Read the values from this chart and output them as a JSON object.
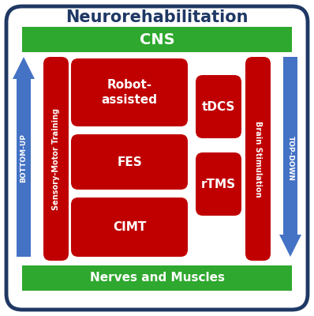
{
  "title": "Neurorehabilitation",
  "title_fontsize": 15,
  "title_color": "#1F3864",
  "outer_box_color": "#1F3864",
  "green_color": "#2EA82E",
  "red_color": "#C00000",
  "white_text": "#FFFFFF",
  "dark_blue_text": "#1F3864",
  "blue_arrow_color": "#4472C4",
  "cns_text": "CNS",
  "nerves_text": "Nerves and Muscles",
  "bottom_up_text": "BOTTOM-UP",
  "top_down_text": "TOP-DOWN",
  "sensory_motor_text": "Sensory-Motor Training",
  "brain_stim_text": "Brain Stimulation",
  "box_labels": [
    "Robot-\nassisted",
    "FES",
    "CIMT",
    "tDCS",
    "rTMS"
  ]
}
